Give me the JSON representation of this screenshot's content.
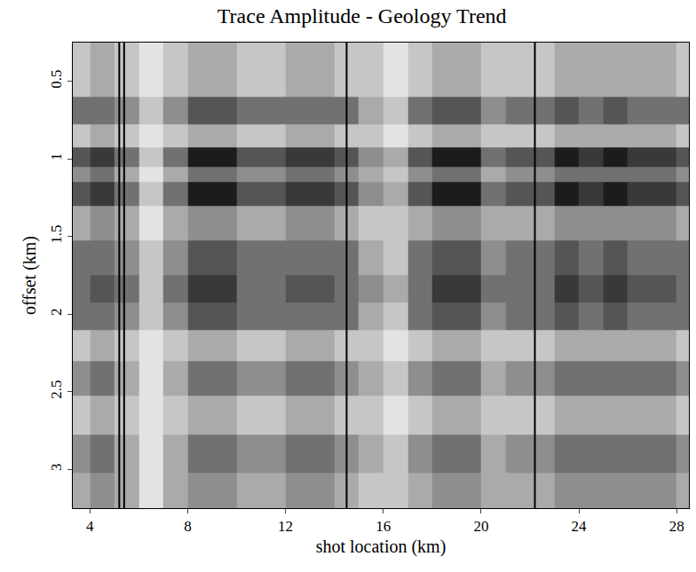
{
  "chart_data": {
    "type": "heatmap",
    "title": "Trace Amplitude - Geology Trend",
    "x_label": "shot location (km)",
    "y_label": "offset (km)",
    "x": [
      3.5,
      4.5,
      5.5,
      6.5,
      7.5,
      8.5,
      9.5,
      10.5,
      11.5,
      12.5,
      13.5,
      14.5,
      15.5,
      16.5,
      17.5,
      18.5,
      19.5,
      20.5,
      21.5,
      22.5,
      23.5,
      24.5,
      25.5,
      26.5,
      27.5,
      28.5
    ],
    "y": [
      0.3,
      0.5,
      0.7,
      0.85,
      1.0,
      1.1,
      1.2,
      1.4,
      1.65,
      1.85,
      2.0,
      2.2,
      2.4,
      2.65,
      2.9,
      3.15
    ],
    "z": [
      [
        2,
        3,
        2,
        1,
        2,
        3,
        3,
        2,
        2,
        3,
        3,
        2,
        2,
        1,
        2,
        3,
        3,
        2,
        2,
        2,
        3,
        3,
        3,
        3,
        3,
        2
      ],
      [
        2,
        3,
        2,
        1,
        2,
        3,
        3,
        2,
        2,
        3,
        3,
        2,
        2,
        1,
        2,
        3,
        3,
        2,
        2,
        2,
        3,
        3,
        3,
        3,
        3,
        2
      ],
      [
        5,
        5,
        4,
        2,
        4,
        6,
        6,
        5,
        5,
        5,
        5,
        5,
        3,
        2,
        5,
        6,
        6,
        4,
        5,
        5,
        6,
        5,
        6,
        5,
        5,
        5
      ],
      [
        2,
        3,
        2,
        1,
        2,
        3,
        3,
        2,
        2,
        3,
        3,
        2,
        2,
        1,
        2,
        3,
        3,
        2,
        2,
        2,
        3,
        3,
        3,
        3,
        3,
        2
      ],
      [
        6,
        7,
        5,
        2,
        5,
        8,
        8,
        6,
        6,
        7,
        7,
        6,
        4,
        3,
        6,
        8,
        8,
        5,
        6,
        6,
        8,
        7,
        8,
        7,
        7,
        6
      ],
      [
        4,
        5,
        3,
        1,
        3,
        5,
        5,
        4,
        4,
        5,
        5,
        4,
        3,
        2,
        4,
        5,
        5,
        3,
        4,
        4,
        5,
        5,
        5,
        5,
        5,
        4
      ],
      [
        6,
        7,
        5,
        2,
        5,
        8,
        8,
        6,
        6,
        7,
        7,
        6,
        4,
        3,
        6,
        8,
        8,
        5,
        6,
        6,
        8,
        7,
        8,
        7,
        7,
        6
      ],
      [
        3,
        4,
        3,
        1,
        3,
        4,
        4,
        3,
        3,
        4,
        4,
        3,
        2,
        2,
        3,
        4,
        4,
        3,
        3,
        3,
        4,
        4,
        4,
        4,
        4,
        3
      ],
      [
        5,
        5,
        4,
        2,
        4,
        6,
        6,
        5,
        5,
        5,
        5,
        5,
        3,
        2,
        5,
        6,
        6,
        4,
        5,
        5,
        6,
        5,
        6,
        5,
        5,
        5
      ],
      [
        5,
        6,
        5,
        2,
        5,
        7,
        7,
        5,
        5,
        6,
        6,
        5,
        4,
        3,
        5,
        7,
        7,
        5,
        5,
        5,
        7,
        6,
        7,
        6,
        6,
        5
      ],
      [
        5,
        5,
        4,
        2,
        4,
        6,
        6,
        5,
        5,
        5,
        5,
        5,
        3,
        2,
        5,
        6,
        6,
        4,
        5,
        5,
        6,
        5,
        6,
        5,
        5,
        5
      ],
      [
        2,
        3,
        2,
        1,
        2,
        3,
        3,
        2,
        2,
        3,
        3,
        2,
        2,
        1,
        2,
        3,
        3,
        2,
        2,
        2,
        3,
        3,
        3,
        3,
        3,
        2
      ],
      [
        4,
        5,
        3,
        1,
        3,
        5,
        5,
        4,
        4,
        5,
        5,
        4,
        3,
        2,
        4,
        5,
        5,
        3,
        4,
        4,
        5,
        5,
        5,
        5,
        5,
        4
      ],
      [
        2,
        3,
        2,
        1,
        2,
        3,
        3,
        2,
        2,
        3,
        3,
        2,
        2,
        1,
        2,
        3,
        3,
        2,
        2,
        2,
        3,
        3,
        3,
        3,
        3,
        2
      ],
      [
        4,
        5,
        3,
        1,
        3,
        5,
        5,
        4,
        4,
        5,
        5,
        4,
        3,
        2,
        4,
        5,
        5,
        3,
        4,
        4,
        5,
        5,
        5,
        5,
        5,
        4
      ],
      [
        3,
        4,
        3,
        1,
        3,
        4,
        4,
        3,
        3,
        4,
        4,
        3,
        2,
        2,
        3,
        4,
        4,
        3,
        3,
        3,
        4,
        4,
        4,
        4,
        4,
        3
      ]
    ],
    "zlim": [
      0,
      9
    ],
    "color": "#000000",
    "vertical_lines": [
      5.2,
      5.4,
      14.5,
      22.2
    ],
    "xlim": [
      3.3,
      28.5
    ],
    "xticks": [
      4,
      8,
      12,
      16,
      20,
      24,
      28
    ],
    "ylim": [
      3.25,
      0.25
    ],
    "yticks": [
      0.5,
      1,
      1.5,
      2,
      2.5,
      3
    ]
  }
}
